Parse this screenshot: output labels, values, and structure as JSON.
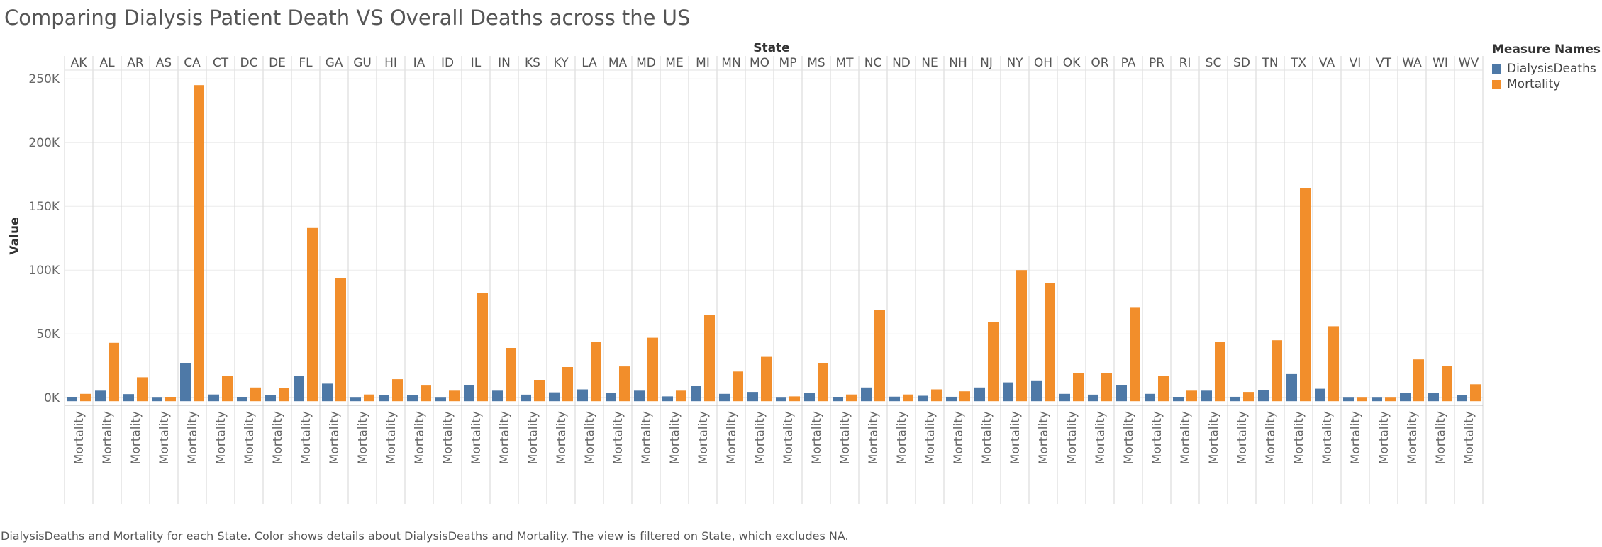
{
  "title": "Comparing Dialysis Patient Death VS Overall Deaths across the US",
  "caption": "DialysisDeaths and Mortality for each State.  Color shows details about DialysisDeaths and Mortality. The view is filtered on State, which excludes NA.",
  "legend": {
    "title": "Measure Names",
    "items": [
      {
        "label": "DialysisDeaths",
        "color": "#4e79a7"
      },
      {
        "label": "Mortality",
        "color": "#f28e2b"
      }
    ]
  },
  "chart_data": {
    "type": "bar",
    "xlabel": "State",
    "ylabel": "Value",
    "ylim": [
      -6000,
      259000
    ],
    "y_ticks": [
      {
        "value": 0,
        "label": "0K"
      },
      {
        "value": 50000,
        "label": "50K"
      },
      {
        "value": 100000,
        "label": "100K"
      },
      {
        "value": 150000,
        "label": "150K"
      },
      {
        "value": 200000,
        "label": "200K"
      },
      {
        "value": 250000,
        "label": "250K"
      }
    ],
    "categories": [
      "AK",
      "AL",
      "AR",
      "AS",
      "CA",
      "CT",
      "DC",
      "DE",
      "FL",
      "GA",
      "GU",
      "HI",
      "IA",
      "ID",
      "IL",
      "IN",
      "KS",
      "KY",
      "LA",
      "MA",
      "MD",
      "ME",
      "MI",
      "MN",
      "MO",
      "MP",
      "MS",
      "MT",
      "NC",
      "ND",
      "NE",
      "NH",
      "NJ",
      "NY",
      "OH",
      "OK",
      "OR",
      "PA",
      "PR",
      "RI",
      "SC",
      "SD",
      "TN",
      "TX",
      "VA",
      "VI",
      "VT",
      "WA",
      "WI",
      "WV"
    ],
    "bottom_label": "Mortality",
    "series": [
      {
        "name": "DialysisDeaths",
        "color": "#4e79a7",
        "values": [
          200,
          5500,
          2800,
          0,
          27000,
          2500,
          300,
          1800,
          17000,
          11000,
          0,
          2000,
          2200,
          0,
          10000,
          5500,
          2400,
          4200,
          6500,
          3500,
          5500,
          1000,
          9000,
          3000,
          4500,
          0,
          3500,
          600,
          8000,
          800,
          1500,
          700,
          8000,
          12000,
          13000,
          3000,
          2400,
          10000,
          3000,
          600,
          5500,
          700,
          6000,
          18500,
          7000,
          0,
          0,
          4000,
          3800,
          2200
        ]
      },
      {
        "name": "Mortality",
        "color": "#f28e2b",
        "values": [
          3000,
          43000,
          16000,
          200,
          245000,
          17000,
          8000,
          7500,
          133000,
          94000,
          2500,
          14500,
          9500,
          5500,
          82000,
          39000,
          14000,
          24000,
          44000,
          24500,
          47000,
          5500,
          65000,
          20500,
          32000,
          1000,
          27000,
          2500,
          69000,
          2500,
          6500,
          5000,
          59000,
          100000,
          90000,
          19000,
          19000,
          71000,
          17000,
          5500,
          44000,
          4500,
          45000,
          164000,
          56000,
          0,
          0,
          30000,
          25000,
          10500
        ]
      }
    ]
  }
}
